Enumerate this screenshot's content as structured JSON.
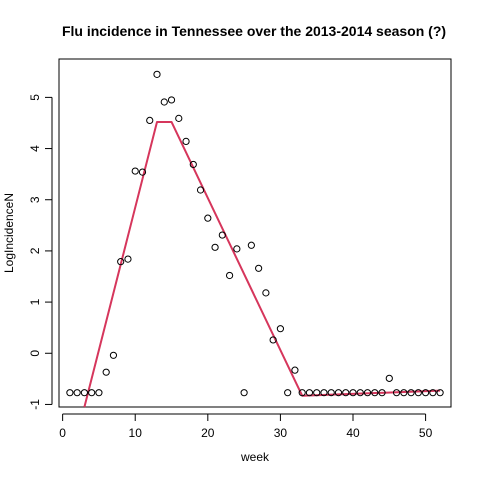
{
  "chart_data": {
    "type": "scatter",
    "title": "Flu incidence in Tennessee over the 2013-2014 season (?)",
    "xlabel": "week",
    "ylabel": "LogIncidenceN",
    "xlim": [
      -0.5,
      53.5
    ],
    "ylim": [
      -1.05,
      5.75
    ],
    "x_ticks": [
      0,
      10,
      20,
      30,
      40,
      50
    ],
    "y_ticks": [
      -1,
      0,
      1,
      2,
      3,
      4,
      5
    ],
    "grid": false,
    "point_style": "open-circle",
    "series": [
      {
        "kind": "points",
        "x": [
          1,
          2,
          3,
          4,
          5,
          6,
          7,
          8,
          9,
          10,
          11,
          12,
          13,
          14,
          15,
          16,
          17,
          18,
          19,
          20,
          21,
          22,
          23,
          24,
          25,
          26,
          27,
          28,
          29,
          30,
          31,
          32,
          33,
          34,
          35,
          36,
          37,
          38,
          39,
          40,
          41,
          42,
          43,
          44,
          45,
          46,
          47,
          48,
          49,
          50,
          51,
          52
        ],
        "y": [
          -0.77,
          -0.77,
          -0.77,
          -0.77,
          -0.77,
          -0.37,
          -0.04,
          1.79,
          1.84,
          3.56,
          3.54,
          4.55,
          5.45,
          4.91,
          4.95,
          4.59,
          4.14,
          3.69,
          3.19,
          2.64,
          2.07,
          2.31,
          1.52,
          2.04,
          -0.77,
          2.11,
          1.66,
          1.18,
          0.26,
          0.48,
          -0.77,
          -0.33,
          -0.77,
          -0.77,
          -0.77,
          -0.77,
          -0.77,
          -0.77,
          -0.77,
          -0.77,
          -0.77,
          -0.77,
          -0.77,
          -0.77,
          -0.49,
          -0.77,
          -0.77,
          -0.77,
          -0.77,
          -0.77,
          -0.77,
          -0.77
        ]
      },
      {
        "kind": "line",
        "color": "#d6365c",
        "x": [
          3,
          13,
          15,
          33,
          52
        ],
        "y": [
          -1.05,
          4.52,
          4.52,
          -0.83,
          -0.73
        ]
      }
    ]
  }
}
